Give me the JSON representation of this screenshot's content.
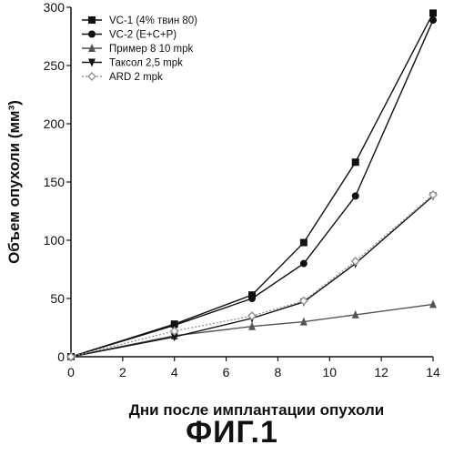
{
  "chart_data": {
    "type": "line",
    "title": "",
    "xlabel": "Дни после имплантации опухоли",
    "ylabel": "Объем опухоли (мм³)",
    "xlim": [
      0,
      14
    ],
    "ylim": [
      0,
      300
    ],
    "x_ticks": [
      0,
      2,
      4,
      6,
      8,
      10,
      12,
      14
    ],
    "y_ticks": [
      0,
      50,
      100,
      150,
      200,
      250,
      300
    ],
    "grid": false,
    "legend_position": "top-left",
    "series": [
      {
        "name": "VC-1 (4% твин 80)",
        "marker": "square",
        "color": "#111111",
        "dash": "",
        "x": [
          0,
          4,
          7,
          9,
          11,
          14
        ],
        "values": [
          0,
          28,
          53,
          98,
          167,
          295
        ]
      },
      {
        "name": "VC-2 (E+C+P)",
        "marker": "circle",
        "color": "#111111",
        "dash": "",
        "x": [
          0,
          4,
          7,
          9,
          11,
          14
        ],
        "values": [
          0,
          27,
          50,
          80,
          138,
          289
        ]
      },
      {
        "name": "Пример 8 10 mpk",
        "marker": "triangle-up",
        "color": "#555555",
        "dash": "",
        "x": [
          0,
          4,
          7,
          9,
          11,
          14
        ],
        "values": [
          0,
          18,
          26,
          30,
          36,
          45
        ]
      },
      {
        "name": "Таксол 2,5 mpk",
        "marker": "triangle-down",
        "color": "#111111",
        "dash": "",
        "x": [
          0,
          4,
          7,
          9,
          11,
          14
        ],
        "values": [
          0,
          17,
          33,
          47,
          80,
          138
        ]
      },
      {
        "name": "ARD 2 mpk",
        "marker": "diamond",
        "color": "#999999",
        "dash": "2,2",
        "x": [
          0,
          4,
          7,
          9,
          11,
          14
        ],
        "values": [
          0,
          22,
          35,
          48,
          82,
          139
        ]
      }
    ]
  },
  "caption": "ФИГ.1"
}
